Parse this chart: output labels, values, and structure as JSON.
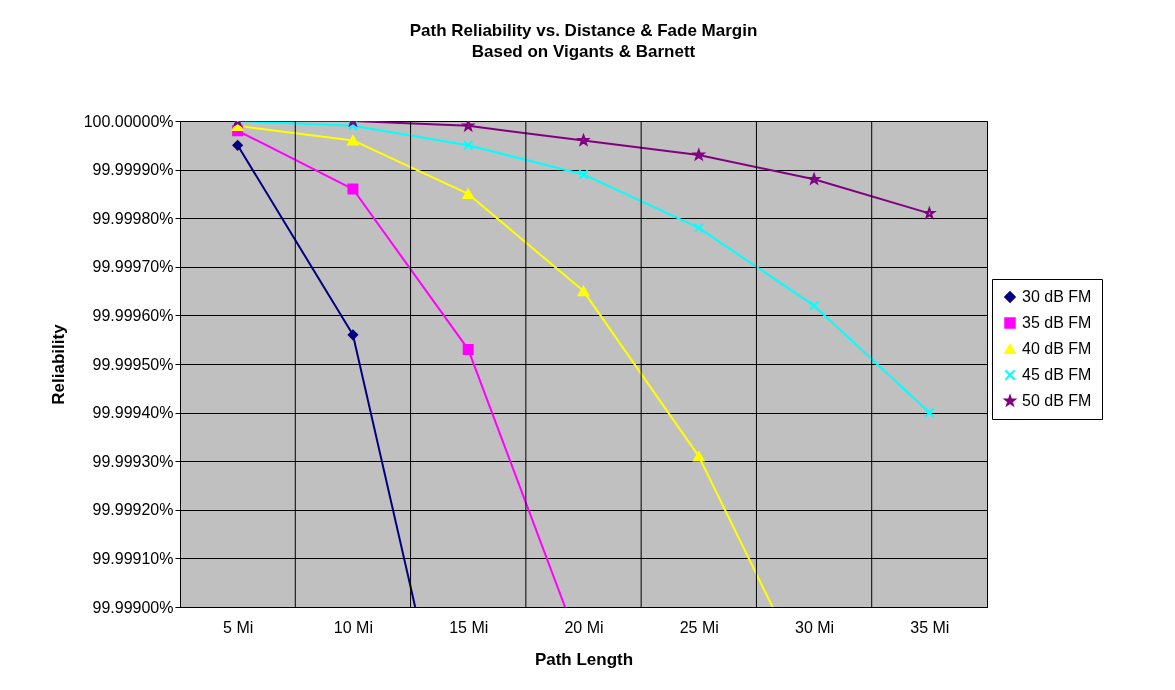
{
  "chart_data": {
    "type": "line",
    "title": "Path Reliability vs. Distance & Fade Margin",
    "subtitle": "Based on Vigants & Barnett",
    "xlabel": "Path Length",
    "ylabel": "Reliability",
    "xlim": [
      2.5,
      37.5
    ],
    "xticks": [
      {
        "value": 5,
        "label": "5 Mi"
      },
      {
        "value": 7.5,
        "label": null
      },
      {
        "value": 10,
        "label": "10 Mi"
      },
      {
        "value": 12.5,
        "label": null
      },
      {
        "value": 15,
        "label": "15 Mi"
      },
      {
        "value": 17.5,
        "label": null
      },
      {
        "value": 20,
        "label": "20 Mi"
      },
      {
        "value": 22.5,
        "label": null
      },
      {
        "value": 25,
        "label": "25 Mi"
      },
      {
        "value": 27.5,
        "label": null
      },
      {
        "value": 30,
        "label": "30 Mi"
      },
      {
        "value": 32.5,
        "label": null
      },
      {
        "value": 35,
        "label": "35 Mi"
      }
    ],
    "ylim": [
      99.999,
      100
    ],
    "yticks": [
      {
        "value": 99.999,
        "label": "99.99900%"
      },
      {
        "value": 99.9991,
        "label": "99.99910%"
      },
      {
        "value": 99.9992,
        "label": "99.99920%"
      },
      {
        "value": 99.9993,
        "label": "99.99930%"
      },
      {
        "value": 99.9994,
        "label": "99.99940%"
      },
      {
        "value": 99.9995,
        "label": "99.99950%"
      },
      {
        "value": 99.9996,
        "label": "99.99960%"
      },
      {
        "value": 99.9997,
        "label": "99.99970%"
      },
      {
        "value": 99.9998,
        "label": "99.99980%"
      },
      {
        "value": 99.9999,
        "label": "99.99990%"
      },
      {
        "value": 100,
        "label": "100.00000%"
      }
    ],
    "grid": true,
    "legend": "right",
    "series": [
      {
        "name": "30 dB FM",
        "color": "#000080",
        "marker": "diamond",
        "x": [
          5,
          10,
          12.7
        ],
        "values": [
          99.99995,
          99.99956,
          99.999
        ]
      },
      {
        "name": "35 dB FM",
        "color": "#ff00ff",
        "marker": "square",
        "x": [
          5,
          10,
          15,
          19.2
        ],
        "values": [
          99.99998,
          99.99986,
          99.99953,
          99.999
        ]
      },
      {
        "name": "40 dB FM",
        "color": "#ffff00",
        "marker": "triangle",
        "x": [
          5,
          10,
          15,
          20,
          25,
          28.2
        ],
        "values": [
          99.99999,
          99.99996,
          99.99985,
          99.99965,
          99.99931,
          99.999
        ]
      },
      {
        "name": "45 dB FM",
        "color": "#00ffff",
        "marker": "cross",
        "x": [
          5,
          10,
          15,
          20,
          25,
          30,
          35
        ],
        "values": [
          100,
          99.99999,
          99.99995,
          99.99989,
          99.99978,
          99.99962,
          99.9994
        ]
      },
      {
        "name": "50 dB FM",
        "color": "#800080",
        "marker": "star",
        "x": [
          5,
          10,
          15,
          20,
          25,
          30,
          35
        ],
        "values": [
          100,
          100,
          99.99999,
          99.99996,
          99.99993,
          99.99988,
          99.99981
        ]
      }
    ]
  }
}
